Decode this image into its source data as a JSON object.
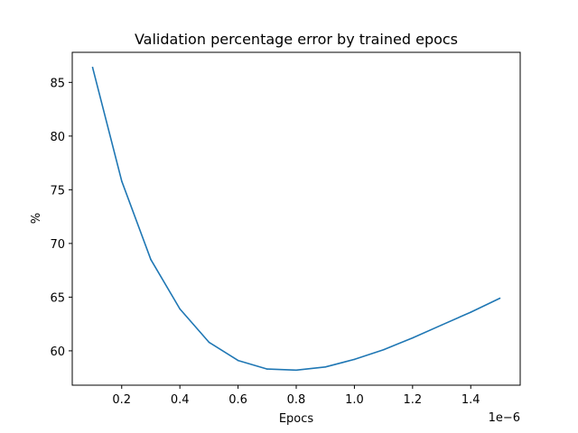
{
  "chart_data": {
    "type": "line",
    "title": "Validation percentage error by trained epocs",
    "xlabel": "Epocs",
    "ylabel": "%",
    "x_offset_label": "1e−6",
    "x_scale": 1e-06,
    "xlim": [
      0.03,
      1.57
    ],
    "ylim": [
      56.8,
      87.8
    ],
    "xticks": [
      0.2,
      0.4,
      0.6,
      0.8,
      1.0,
      1.2,
      1.4
    ],
    "xtick_labels": [
      "0.2",
      "0.4",
      "0.6",
      "0.8",
      "1.0",
      "1.2",
      "1.4"
    ],
    "yticks": [
      60,
      65,
      70,
      75,
      80,
      85
    ],
    "ytick_labels": [
      "60",
      "65",
      "70",
      "75",
      "80",
      "85"
    ],
    "grid": false,
    "series": [
      {
        "color": "#1f77b4",
        "x": [
          0.1,
          0.2,
          0.3,
          0.4,
          0.5,
          0.6,
          0.7,
          0.8,
          0.9,
          1.0,
          1.1,
          1.2,
          1.3,
          1.4,
          1.5
        ],
        "values": [
          86.4,
          75.8,
          68.5,
          63.9,
          60.8,
          59.1,
          58.3,
          58.2,
          58.5,
          59.2,
          60.1,
          61.2,
          62.4,
          63.6,
          64.9
        ]
      }
    ]
  }
}
